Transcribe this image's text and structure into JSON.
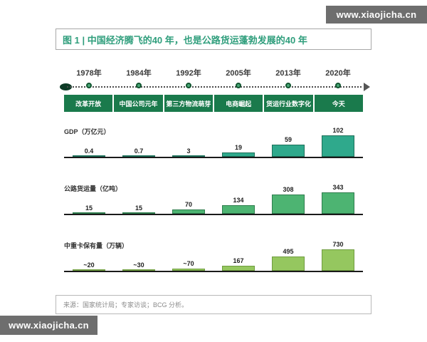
{
  "watermark": {
    "text": "www.xiaojicha.cn"
  },
  "title": "图 1 | 中国经济腾飞的40 年，也是公路货运蓬勃发展的40 年",
  "timeline": {
    "years": [
      "1978年",
      "1984年",
      "1992年",
      "2005年",
      "2013年",
      "2020年"
    ],
    "phases": [
      "改革开放",
      "中国公司元年",
      "第三方物流萌芽",
      "电商崛起",
      "货运行业数字化",
      "今天"
    ]
  },
  "chart_data": [
    {
      "type": "bar",
      "title": "GDP（万亿元）",
      "categories": [
        "1978年",
        "1984年",
        "1992年",
        "2005年",
        "2013年",
        "2020年"
      ],
      "values": [
        0.4,
        0.7,
        3,
        19,
        59,
        102
      ],
      "labels": [
        "0.4",
        "0.7",
        "3",
        "19",
        "59",
        "102"
      ],
      "ylim": [
        0,
        102
      ],
      "fill": "#2FA98C",
      "border": "#1b6f58"
    },
    {
      "type": "bar",
      "title": "公路货运量（亿吨）",
      "categories": [
        "1978年",
        "1984年",
        "1992年",
        "2005年",
        "2013年",
        "2020年"
      ],
      "values": [
        15,
        15,
        70,
        134,
        308,
        343
      ],
      "labels": [
        "15",
        "15",
        "70",
        "134",
        "308",
        "343"
      ],
      "ylim": [
        0,
        343
      ],
      "fill": "#4DB472",
      "border": "#2e7d4d"
    },
    {
      "type": "bar",
      "title": "中重卡保有量（万辆）",
      "categories": [
        "1978年",
        "1984年",
        "1992年",
        "2005年",
        "2013年",
        "2020年"
      ],
      "values": [
        20,
        30,
        70,
        167,
        495,
        730
      ],
      "labels": [
        "~20",
        "~30",
        "~70",
        "167",
        "495",
        "730"
      ],
      "ylim": [
        0,
        730
      ],
      "fill": "#95C75F",
      "border": "#6f9c3f"
    }
  ],
  "source": "来源：国家统计局；专家访谈；BCG 分析。",
  "colors": {
    "title_green": "#2f9e7c",
    "phase_bg": "#1a7a4c",
    "watermark_bg": "#6e6e6e"
  }
}
